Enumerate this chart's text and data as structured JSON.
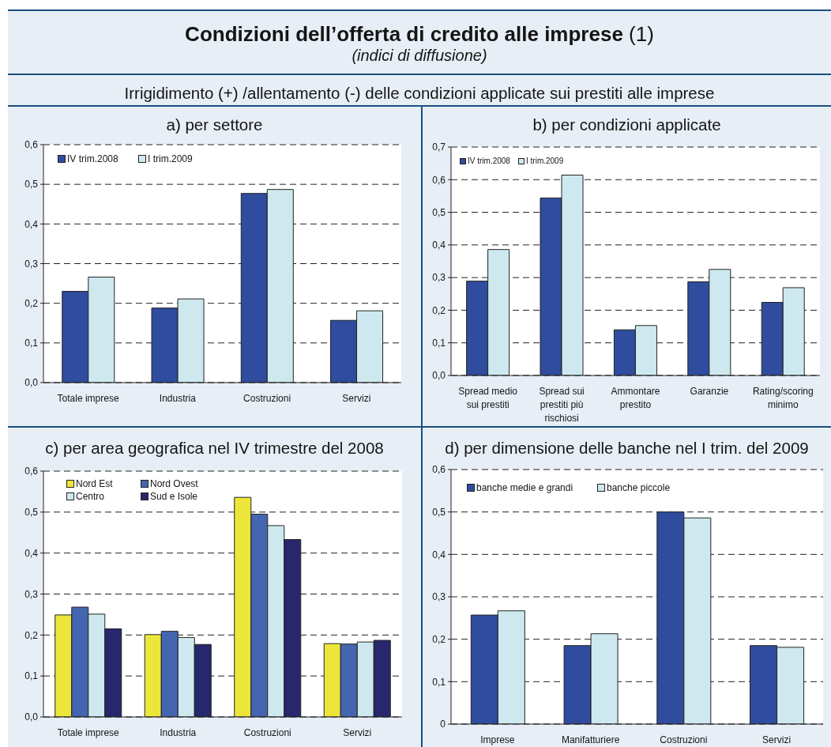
{
  "chart_data": [
    {
      "type": "other",
      "title": "Condizioni dell’offerta di credito alle imprese (1)",
      "subtitle": "(indici di diffusione)",
      "annotations": [
        "Irrigidimento (+) /allentamento (-) delle condizioni applicate sui prestiti alle imprese"
      ]
    },
    {
      "type": "bar",
      "title": "a) per settore",
      "categories": [
        "Totale imprese",
        "Industria",
        "Costruzioni",
        "Servizi"
      ],
      "series": [
        {
          "name": "IV trim.2008",
          "color": "#2f4c9e",
          "values": [
            0.23,
            0.188,
            0.477,
            0.157
          ]
        },
        {
          "name": "I trim.2009",
          "color": "#cde9ef",
          "values": [
            0.266,
            0.211,
            0.487,
            0.181
          ]
        }
      ],
      "ylim": [
        0,
        0.6
      ],
      "yticks": [
        {
          "value": 0,
          "label": "0,0"
        },
        {
          "value": 0.1,
          "label": "0,1"
        },
        {
          "value": 0.2,
          "label": "0,2"
        },
        {
          "value": 0.3,
          "label": "0,3"
        },
        {
          "value": 0.4,
          "label": "0,4"
        },
        {
          "value": 0.5,
          "label": "0,5"
        },
        {
          "value": 0.6,
          "label": "0,6"
        }
      ],
      "grid": "y",
      "legend": "top left"
    },
    {
      "type": "bar",
      "title": "b) per condizioni applicate",
      "categories": [
        "Spread medio sui prestiti",
        "Spread sui prestiti più rischiosi",
        "Ammontare prestito",
        "Garanzie",
        "Rating/scoring minimo"
      ],
      "series": [
        {
          "name": "IV trim.2008",
          "color": "#2f4c9e",
          "values": [
            0.289,
            0.544,
            0.14,
            0.287,
            0.224
          ]
        },
        {
          "name": "I trim.2009",
          "color": "#cde9ef",
          "values": [
            0.386,
            0.614,
            0.153,
            0.325,
            0.269
          ]
        }
      ],
      "ylim": [
        0,
        0.7
      ],
      "yticks": [
        {
          "value": 0,
          "label": "0,0"
        },
        {
          "value": 0.1,
          "label": "0,1"
        },
        {
          "value": 0.2,
          "label": "0,2"
        },
        {
          "value": 0.3,
          "label": "0,3"
        },
        {
          "value": 0.4,
          "label": "0,4"
        },
        {
          "value": 0.5,
          "label": "0,5"
        },
        {
          "value": 0.6,
          "label": "0,6"
        },
        {
          "value": 0.7,
          "label": "0,7"
        }
      ],
      "grid": "y",
      "legend": "top left"
    },
    {
      "type": "bar",
      "title": "c) per area geografica nel IV trimestre del 2008",
      "categories": [
        "Totale imprese",
        "Industria",
        "Costruzioni",
        "Servizi"
      ],
      "series": [
        {
          "name": "Nord Est",
          "color": "#ede63a",
          "values": [
            0.249,
            0.201,
            0.536,
            0.179
          ]
        },
        {
          "name": "Nord Ovest",
          "color": "#4465af",
          "values": [
            0.268,
            0.209,
            0.495,
            0.178
          ]
        },
        {
          "name": "Centro",
          "color": "#cde9ef",
          "values": [
            0.251,
            0.194,
            0.467,
            0.183
          ]
        },
        {
          "name": "Sud e Isole",
          "color": "#26276c",
          "values": [
            0.215,
            0.177,
            0.433,
            0.187
          ]
        }
      ],
      "ylim": [
        0,
        0.6
      ],
      "yticks": [
        {
          "value": 0,
          "label": "0,0"
        },
        {
          "value": 0.1,
          "label": "0,1"
        },
        {
          "value": 0.2,
          "label": "0,2"
        },
        {
          "value": 0.3,
          "label": "0,3"
        },
        {
          "value": 0.4,
          "label": "0,4"
        },
        {
          "value": 0.5,
          "label": "0,5"
        },
        {
          "value": 0.6,
          "label": "0,6"
        }
      ],
      "grid": "y",
      "legend": "top left"
    },
    {
      "type": "bar",
      "title": "d) per dimensione delle banche nel I trim. del 2009",
      "categories": [
        "Imprese",
        "Manifatturiere",
        "Costruzioni",
        "Servizi"
      ],
      "series": [
        {
          "name": "banche medie e grandi",
          "color": "#2f4c9e",
          "values": [
            0.257,
            0.185,
            0.5,
            0.185
          ]
        },
        {
          "name": "banche piccole",
          "color": "#cde9ef",
          "values": [
            0.267,
            0.213,
            0.486,
            0.181
          ]
        }
      ],
      "ylim": [
        0,
        0.6
      ],
      "yticks": [
        0,
        {
          "value": 0.1,
          "label": "0,1"
        },
        {
          "value": 0.2,
          "label": "0,2"
        },
        {
          "value": 0.3,
          "label": "0,3"
        },
        {
          "value": 0.4,
          "label": "0,4"
        },
        {
          "value": 0.5,
          "label": "0,5"
        },
        {
          "value": 0.6,
          "label": "0,6"
        }
      ],
      "grid": "y",
      "legend": "top left"
    }
  ]
}
